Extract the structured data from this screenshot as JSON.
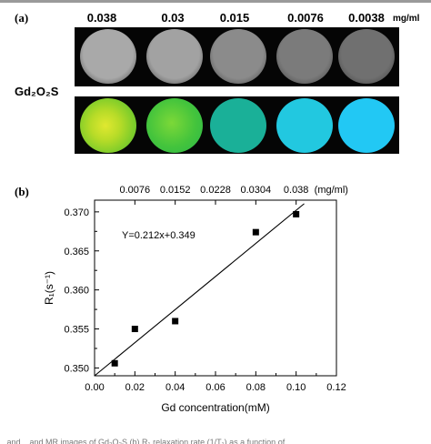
{
  "panel_a": {
    "label": "(a)",
    "concentrations": [
      "0.038",
      "0.03",
      "0.015",
      "0.0076",
      "0.0038"
    ],
    "unit": "mg/ml",
    "compound": "Gd₂O₂S",
    "gray_discs": [
      "#a9a9a9",
      "#a2a2a2",
      "#8b8b8b",
      "#7b7b7b",
      "#707070"
    ],
    "color_discs": [
      "#a6e020",
      "#3cc43a",
      "#1ab098",
      "#22c8e0",
      "#22c8f4"
    ]
  },
  "panel_b": {
    "label": "(b)"
  },
  "chart_data": {
    "type": "scatter",
    "xlabel": "Gd concentration(mM)",
    "ylabel": "R₁(s⁻¹)",
    "xlim": [
      0.0,
      0.12
    ],
    "ylim": [
      0.349,
      0.3715
    ],
    "x_ticks": [
      "0.00",
      "0.02",
      "0.04",
      "0.06",
      "0.08",
      "0.10",
      "0.12"
    ],
    "y_ticks": [
      "0.350",
      "0.355",
      "0.360",
      "0.365",
      "0.370"
    ],
    "top_axis_ticks": [
      "0.0076",
      "0.0152",
      "0.0228",
      "0.0304",
      "0.038"
    ],
    "top_axis_unit": "(mg/ml)",
    "equation": "Y=0.212x+0.349",
    "fit": {
      "slope": 0.212,
      "intercept": 0.349
    },
    "series": [
      {
        "x": [
          0.01,
          0.02,
          0.04,
          0.08,
          0.1
        ],
        "y": [
          0.3506,
          0.355,
          0.356,
          0.3674,
          0.3697
        ]
      }
    ]
  },
  "caption_fragment": "...and ...and MR images of Gd₂O₂S (b) R₁ relaxation rate (1/T₁) as a function of..."
}
